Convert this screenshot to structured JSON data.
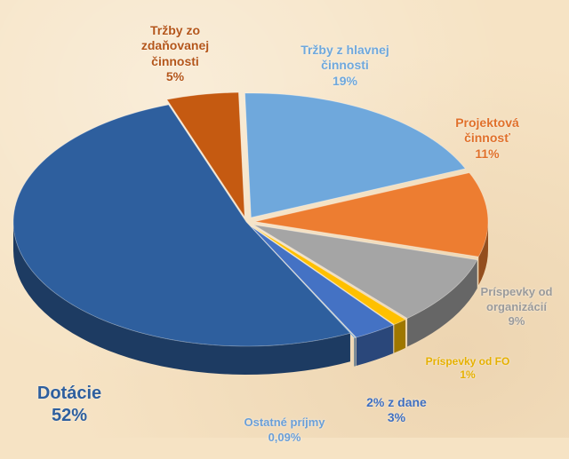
{
  "chart_data": {
    "type": "pie",
    "style": "3d-exploded",
    "slices": [
      {
        "label": "Tržby z hlavnej\nčinnosti",
        "value": 19,
        "value_label": "19%",
        "color": "#6fa8dc"
      },
      {
        "label": "Projektová\nčinnosť",
        "value": 11,
        "value_label": "11%",
        "color": "#ed7d31"
      },
      {
        "label": "Príspevky od\norganizácií",
        "value": 9,
        "value_label": "9%",
        "color": "#a5a5a5"
      },
      {
        "label": "Príspevky od FO",
        "value": 1,
        "value_label": "1%",
        "color": "#ffc000"
      },
      {
        "label": "2% z dane",
        "value": 3,
        "value_label": "3%",
        "color": "#4472c4"
      },
      {
        "label": "Ostatné príjmy",
        "value": 0.09,
        "value_label": "0,09%",
        "color": "#5b9bd5"
      },
      {
        "label": "Dotácie",
        "value": 52,
        "value_label": "52%",
        "color": "#2e5f9e"
      },
      {
        "label": "Tržby zo\nzdaňovanej\nčinnosti",
        "value": 5,
        "value_label": "5%",
        "color": "#c55a11"
      }
    ],
    "label_colors": {
      "Tržby z hlavnej\nčinnosti": "#6fa8dc",
      "Projektová\nčinnosť": "#e0702a",
      "Príspevky od\norganizácií": "#9a9a9a",
      "Príspevky od FO": "#e6b000",
      "2% z dane": "#3f6fc0",
      "Ostatné príjmy": "#6a9fd8",
      "Dotácie": "#2e5f9e",
      "Tržby zo\nzdaňovanej\nčinnosti": "#b4561a"
    }
  }
}
